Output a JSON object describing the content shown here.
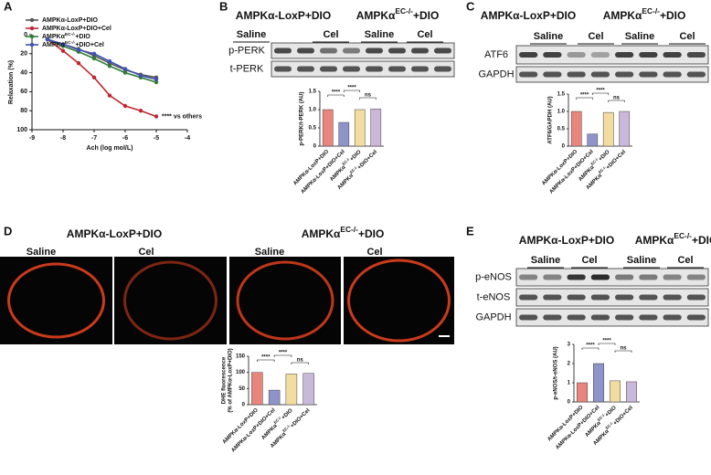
{
  "panels": [
    "A",
    "B",
    "C",
    "D",
    "E"
  ],
  "blots": {
    "B": {
      "groups": [
        "AMPKα-LoxP+DIO",
        [
          "AMPKα",
          "EC-/-",
          "+DIO"
        ]
      ],
      "treatments": [
        "Saline",
        "Cel",
        "Saline",
        "Cel"
      ],
      "rows": [
        "p-PERK",
        "t-PERK"
      ]
    },
    "C": {
      "groups": [
        "AMPKα-LoxP+DIO",
        [
          "AMPKα",
          "EC-/-",
          "+DIO"
        ]
      ],
      "treatments": [
        "Saline",
        "Cel",
        "Saline",
        "Cel"
      ],
      "rows": [
        "ATF6",
        "GAPDH"
      ]
    },
    "D": {
      "groups": [
        "AMPKα-LoxP+DIO",
        [
          "AMPKα",
          "EC-/-",
          "+DIO"
        ]
      ],
      "treatments": [
        "Saline",
        "Cel",
        "Saline",
        "Cel"
      ]
    },
    "E": {
      "groups": [
        "AMPKα-LoxP+DIO",
        [
          "AMPKα",
          "EC-/-",
          "+DIO"
        ]
      ],
      "treatments": [
        "Saline",
        "Cel",
        "Saline",
        "Cel"
      ],
      "rows": [
        "p-eNOS",
        "t-eNOS",
        "GAPDH"
      ]
    }
  },
  "chart_data": [
    {
      "type": "line",
      "x_label": "Ach (log mol/L)",
      "y_label": "Relaxation (%)",
      "x": [
        -8.5,
        -8,
        -7.5,
        -7,
        -6.5,
        -6,
        -5.5,
        -5
      ],
      "xlim": [
        -9,
        -4
      ],
      "xticks": [
        -9,
        -8,
        -7,
        -6,
        -5,
        -4
      ],
      "ylim": [
        0,
        100
      ],
      "y_inverted": true,
      "yticks": [
        0,
        20,
        40,
        60,
        80,
        100
      ],
      "annotation": "**** vs others",
      "series": [
        {
          "name": [
            "AMPKα-LoxP+DIO"
          ],
          "color": "#555555",
          "values": [
            5,
            10,
            15,
            22,
            30,
            37,
            42,
            45
          ]
        },
        {
          "name": [
            "AMPKα-LoxP+DIO+Cel"
          ],
          "color": "#c0282d",
          "values": [
            5,
            17,
            30,
            45,
            64,
            75,
            80,
            86
          ]
        },
        {
          "name": [
            "AMPKα",
            "EC-/-",
            "+DIO"
          ],
          "color": "#2e7d32",
          "values": [
            5,
            12,
            18,
            25,
            33,
            40,
            45,
            50
          ]
        },
        {
          "name": [
            "AMPKα",
            "EC-/-",
            "+DIO+Cel"
          ],
          "color": "#3f51b5",
          "values": [
            5,
            10,
            16,
            20,
            28,
            36,
            43,
            47
          ]
        }
      ]
    },
    {
      "type": "bar",
      "y_label": [
        "p-PERK/t-PERK (AU)"
      ],
      "categories": [
        "AMPKα-LoxP+DIO",
        "AMPKα-LoxP+DIO+Cel",
        [
          "AMPKα",
          "EC-/-",
          "+DIO"
        ],
        [
          "AMPKα",
          "EC-/-",
          "+DIO+Cel"
        ]
      ],
      "values": [
        1.0,
        0.65,
        1.0,
        1.02
      ],
      "colors": [
        "#e8857d",
        "#8e94c9",
        "#f3dca0",
        "#c9b8d9"
      ],
      "ylim": [
        0,
        1.5
      ],
      "yticks": [
        0,
        0.5,
        {
          "value": 1,
          "label": "1.0"
        },
        {
          "value": 1.5,
          "label": "1.5"
        }
      ],
      "significance": [
        "****",
        "****",
        "ns"
      ]
    },
    {
      "type": "bar",
      "y_label": [
        "ATF6/GAPDH (AU)"
      ],
      "categories": [
        "AMPKα-LoxP+DIO",
        "AMPKα-LoxP+DIO+Cel",
        [
          "AMPKα",
          "EC-/-",
          "+DIO"
        ],
        [
          "AMPKα",
          "EC-/-",
          "+DIO+Cel"
        ]
      ],
      "values": [
        1.0,
        0.35,
        0.97,
        1.0
      ],
      "colors": [
        "#e8857d",
        "#8e94c9",
        "#f3dca0",
        "#c9b8d9"
      ],
      "ylim": [
        0,
        1.5
      ],
      "yticks": [
        0,
        0.5,
        {
          "value": 1,
          "label": "1.0"
        },
        {
          "value": 1.5,
          "label": "1.5"
        }
      ],
      "significance": [
        "****",
        "****",
        "ns"
      ]
    },
    {
      "type": "bar",
      "y_label": [
        "DHE fluorescence",
        "(% of AMPKα-LoxP+DIO)"
      ],
      "categories": [
        "AMPKα-LoxP+DIO",
        "AMPKα-LoxP+DIO+Cel",
        [
          "AMPKα",
          "EC-/-",
          "+DIO"
        ],
        [
          "AMPKα",
          "EC-/-",
          "+DIO+Cel"
        ]
      ],
      "values": [
        100,
        45,
        95,
        97
      ],
      "colors": [
        "#e8857d",
        "#8e94c9",
        "#f3dca0",
        "#c9b8d9"
      ],
      "ylim": [
        0,
        150
      ],
      "yticks": [
        0,
        50,
        100,
        150
      ],
      "significance": [
        "****",
        "****",
        "ns"
      ]
    },
    {
      "type": "bar",
      "y_label": [
        "p-eNOS/t-eNOS (AU)"
      ],
      "categories": [
        "AMPKα-LoxP+DIO",
        "AMPKα-LoxP+DIO+Cel",
        [
          "AMPKα",
          "EC-/-",
          "+DIO"
        ],
        [
          "AMPKα",
          "EC-/-",
          "+DIO+Cel"
        ]
      ],
      "values": [
        1.0,
        2.0,
        1.1,
        1.05
      ],
      "colors": [
        "#e8857d",
        "#8e94c9",
        "#f3dca0",
        "#c9b8d9"
      ],
      "ylim": [
        0,
        3
      ],
      "yticks": [
        0,
        1,
        2,
        3
      ],
      "significance": [
        "****",
        "****",
        "ns"
      ]
    }
  ]
}
